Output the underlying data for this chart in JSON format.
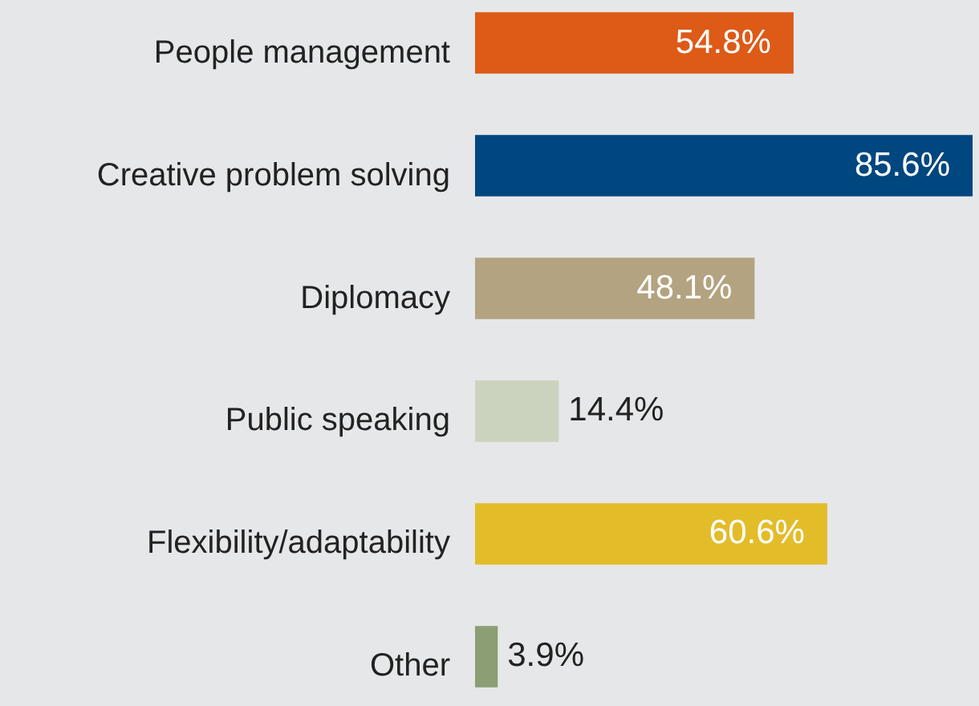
{
  "chart_data": {
    "type": "bar",
    "orientation": "horizontal",
    "categories": [
      "People management",
      "Creative problem solving",
      "Diplomacy",
      "Public speaking",
      "Flexibility/adaptability",
      "Other"
    ],
    "values": [
      54.8,
      85.6,
      48.1,
      14.4,
      60.6,
      3.9
    ],
    "colors": [
      "#dd5a17",
      "#00467f",
      "#b3a380",
      "#cbd3bf",
      "#e3bc29",
      "#8b9e74"
    ],
    "value_labels": [
      "54.8%",
      "85.6%",
      "48.1%",
      "14.4%",
      "60.6%",
      "3.9%"
    ]
  }
}
